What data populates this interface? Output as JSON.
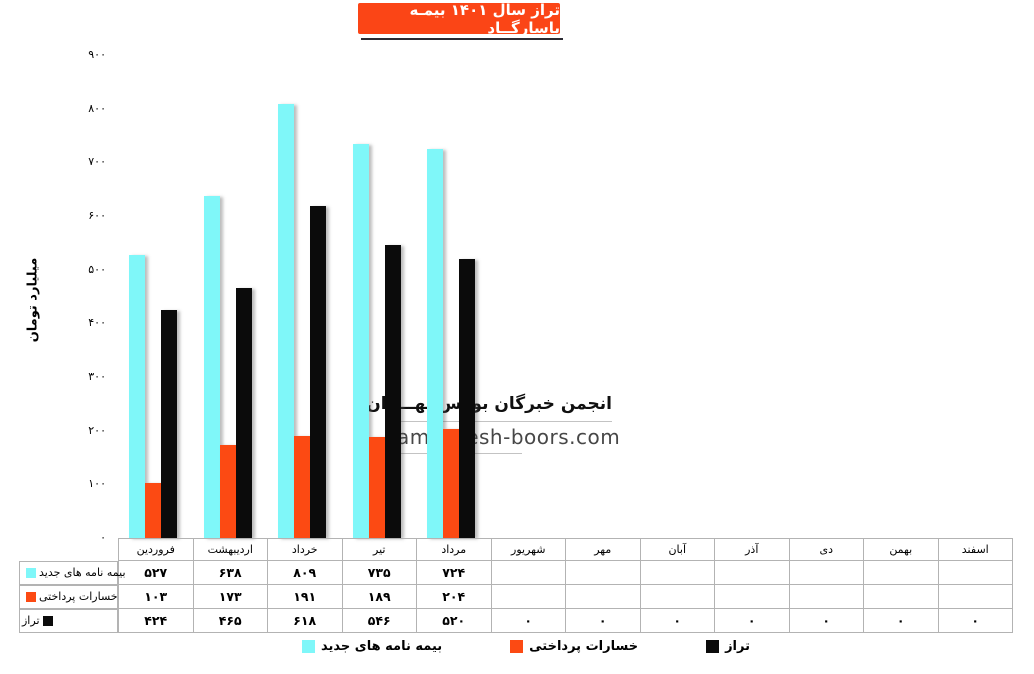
{
  "title": {
    "text": "تراز سال ۱۴۰۱ بیمـه پاسارگــاد"
  },
  "y_axis": {
    "title": "میلیارد تومان",
    "ticks": [
      "۹۰۰",
      "۸۰۰",
      "۷۰۰",
      "۶۰۰",
      "۵۰۰",
      "۴۰۰",
      "۳۰۰",
      "۲۰۰",
      "۱۰۰",
      "۰"
    ]
  },
  "months": [
    "فروردین",
    "اردیبهشت",
    "خرداد",
    "تیر",
    "مرداد",
    "شهریور",
    "مهر",
    "آبان",
    "آذر",
    "دی",
    "بهمن",
    "اسفند"
  ],
  "colors": {
    "new_policies": "#7ff7f9",
    "paid_losses": "#fc4a13",
    "balance": "#0b0b0b",
    "title_bg": "#fb4516"
  },
  "chart_data": {
    "type": "bar",
    "title": "تراز سال ۱۴۰۱ بیمه پاسارگاد",
    "xlabel": "",
    "ylabel": "میلیارد تومان",
    "ylim": [
      0,
      900
    ],
    "y_tick_step": 100,
    "grid": false,
    "legend_position": "bottom",
    "categories": [
      "فروردین",
      "اردیبهشت",
      "خرداد",
      "تیر",
      "مرداد",
      "شهریور",
      "مهر",
      "آبان",
      "آذر",
      "دی",
      "بهمن",
      "اسفند"
    ],
    "series": [
      {
        "name": "بیمه نامه های جدید",
        "color": "#7ff7f9",
        "values": [
          527,
          638,
          809,
          735,
          724,
          null,
          null,
          null,
          null,
          null,
          null,
          null
        ]
      },
      {
        "name": "خسارات پرداختی",
        "color": "#fc4a13",
        "values": [
          103,
          173,
          191,
          189,
          204,
          null,
          null,
          null,
          null,
          null,
          null,
          null
        ]
      },
      {
        "name": "تراز",
        "color": "#0b0b0b",
        "values": [
          424,
          465,
          618,
          546,
          520,
          0,
          0,
          0,
          0,
          0,
          0,
          0
        ]
      }
    ]
  },
  "table": {
    "rows": [
      {
        "label": "بیمه نامه های جدید",
        "color": "#7ff7f9",
        "cells": [
          "۵۲۷",
          "۶۳۸",
          "۸۰۹",
          "۷۳۵",
          "۷۲۴",
          "",
          "",
          "",
          "",
          "",
          "",
          ""
        ]
      },
      {
        "label": "خسارات پرداختی",
        "color": "#fc4a13",
        "cells": [
          "۱۰۳",
          "۱۷۳",
          "۱۹۱",
          "۱۸۹",
          "۲۰۴",
          "",
          "",
          "",
          "",
          "",
          "",
          ""
        ]
      },
      {
        "label": "تراز",
        "color": "#0b0b0b",
        "cells": [
          "۴۲۴",
          "۴۶۵",
          "۶۱۸",
          "۵۴۶",
          "۵۲۰",
          "۰",
          "۰",
          "۰",
          "۰",
          "۰",
          "۰",
          "۰"
        ]
      }
    ]
  },
  "legend": [
    {
      "label": "بیمه نامه های جدید",
      "color": "#7ff7f9"
    },
    {
      "label": "خسارات پرداختی",
      "color": "#fc4a13"
    },
    {
      "label": "تراز",
      "color": "#0b0b0b"
    }
  ],
  "watermark": {
    "line1": "انجمن خبرگان بورس تهـــران",
    "line2": "amoozesh-boors.com"
  }
}
